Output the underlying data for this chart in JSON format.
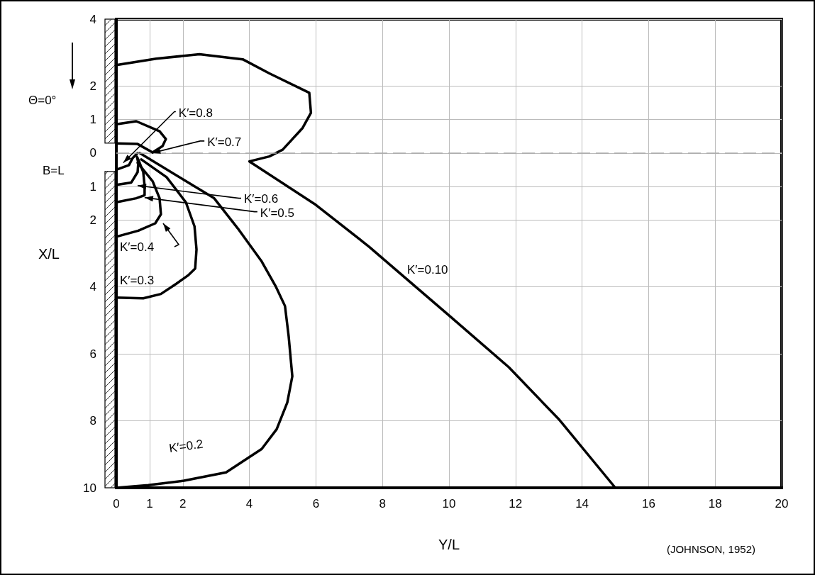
{
  "chart_data": {
    "type": "line",
    "xlabel": "Y/L",
    "ylabel": "X/L",
    "xlim": [
      0,
      20
    ],
    "xticks": [
      0,
      1,
      2,
      4,
      6,
      8,
      10,
      12,
      14,
      16,
      18,
      20
    ],
    "ylim": [
      10,
      -4
    ],
    "yticks": [
      {
        "value": -4,
        "label": "4"
      },
      {
        "value": -2,
        "label": "2"
      },
      {
        "value": -1,
        "label": "1"
      },
      0,
      1,
      2,
      4,
      6,
      8,
      10
    ],
    "grid": true,
    "marker": "none",
    "line_style": "solid",
    "ref_lines": [
      {
        "axis": "y",
        "value": 0,
        "color": "#aaaaaa",
        "line_style": "dashed"
      }
    ],
    "series": [
      {
        "color": "#000000",
        "x": [
          0,
          1.2,
          2.5,
          3.8,
          4.6,
          5.8,
          5.85,
          5.6,
          5.0,
          4.6,
          4.0,
          6.0,
          7.6,
          10.0,
          11.8,
          13.3,
          15.0
        ],
        "values": [
          -2.63,
          -2.82,
          -2.95,
          -2.8,
          -2.38,
          -1.8,
          -1.2,
          -0.75,
          -0.1,
          0.1,
          0.25,
          1.55,
          2.8,
          4.85,
          6.4,
          7.95,
          10
        ]
      },
      {
        "color": "#000000",
        "x": [
          0.7,
          2.94,
          3.65,
          4.37,
          4.8,
          5.07,
          5.18,
          5.29,
          5.14,
          4.82,
          4.37,
          3.3,
          2.03,
          0.96,
          0
        ],
        "values": [
          0,
          1.35,
          2.25,
          3.24,
          4.0,
          4.57,
          5.47,
          6.67,
          7.45,
          8.25,
          8.84,
          9.54,
          9.79,
          9.92,
          10
        ]
      },
      {
        "color": "#000000",
        "x": [
          0.75,
          1.51,
          2.09,
          2.35,
          2.41,
          2.37,
          2.15,
          1.81,
          1.34,
          0.81,
          0
        ],
        "values": [
          0.19,
          0.72,
          1.47,
          2.19,
          2.88,
          3.45,
          3.66,
          3.9,
          4.21,
          4.34,
          4.32
        ]
      },
      {
        "color": "#000000",
        "x": [
          0.64,
          1.09,
          1.3,
          1.34,
          1.17,
          0.66,
          0
        ],
        "values": [
          0.29,
          0.84,
          1.35,
          1.83,
          2.1,
          2.32,
          2.5
        ]
      },
      {
        "color": "#000000",
        "x": [
          0,
          0.6,
          0.85,
          0.85,
          0.81,
          0.7,
          0.64
        ],
        "values": [
          1.47,
          1.35,
          1.26,
          0.99,
          0.57,
          0.29,
          0.15
        ]
      },
      {
        "color": "#000000",
        "x": [
          0,
          0.45,
          0.64,
          0.66,
          0.62
        ],
        "values": [
          0.95,
          0.88,
          0.57,
          0.29,
          0.11
        ]
      },
      {
        "color": "#000000",
        "x": [
          0,
          0.38,
          0.49,
          0.64
        ],
        "values": [
          0.5,
          0.36,
          0.15,
          0
        ]
      },
      {
        "color": "#000000",
        "x": [
          0,
          0.6,
          1.3,
          1.49,
          1.39,
          1.09,
          0.64,
          0
        ],
        "values": [
          -0.86,
          -0.95,
          -0.65,
          -0.42,
          -0.21,
          -0.02,
          -0.27,
          -0.29
        ]
      }
    ],
    "annotations": [
      "Θ=0°",
      "B=L",
      "(JOHNSON, 1952)",
      {
        "text": "K′=0.8",
        "x": 0.21,
        "y": 0.29
      },
      {
        "text": "K′=0.7",
        "x": 1.07,
        "y": 0
      },
      {
        "text": "K′=0.6",
        "x": 0.64,
        "y": 0.97
      },
      {
        "text": "K′=0.5",
        "x": 0.85,
        "y": 1.33
      },
      "K′=0.4",
      "K′=0.3",
      {
        "text": "K′=0.2",
        "x": 2.03,
        "y": 9.79
      },
      "K′=0.10"
    ]
  }
}
